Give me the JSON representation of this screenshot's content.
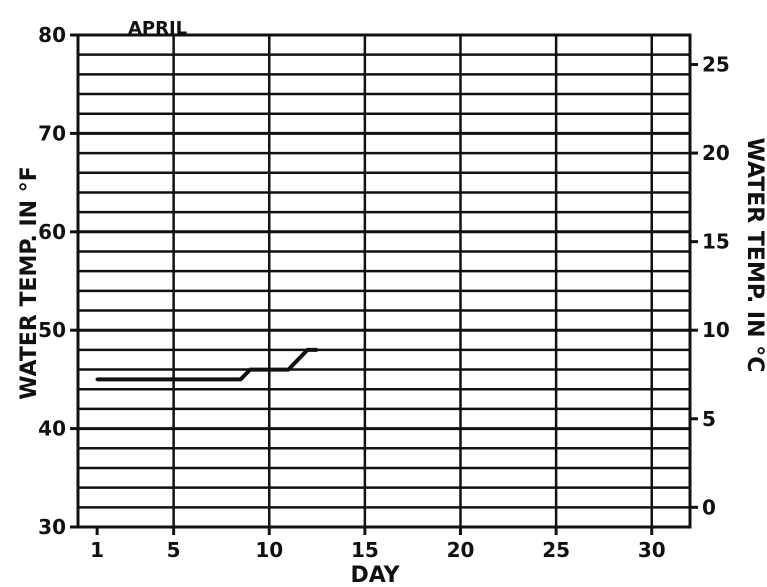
{
  "chart_data": {
    "type": "line",
    "annotation": "APRIL",
    "xlabel": "DAY",
    "ylabel_left": "WATER TEMP. IN °F",
    "ylabel_right": "WATER TEMP. IN °C",
    "x_ticks": [
      1,
      5,
      10,
      15,
      20,
      25,
      30
    ],
    "y_ticks_left": [
      30,
      40,
      50,
      60,
      70,
      80
    ],
    "y_ticks_right": [
      0,
      5,
      10,
      15,
      20,
      25
    ],
    "xlim": [
      0,
      32
    ],
    "ylim": [
      30,
      80
    ],
    "grid": true,
    "series": [
      {
        "x": [
          1,
          2,
          3,
          4,
          5,
          6,
          7,
          8,
          8.5,
          9,
          9.5,
          10,
          11,
          11.5,
          12,
          12.5
        ],
        "y": [
          45,
          45,
          45,
          45,
          45,
          45,
          45,
          45,
          45,
          46,
          46,
          46,
          46,
          47,
          48,
          48
        ]
      }
    ]
  }
}
